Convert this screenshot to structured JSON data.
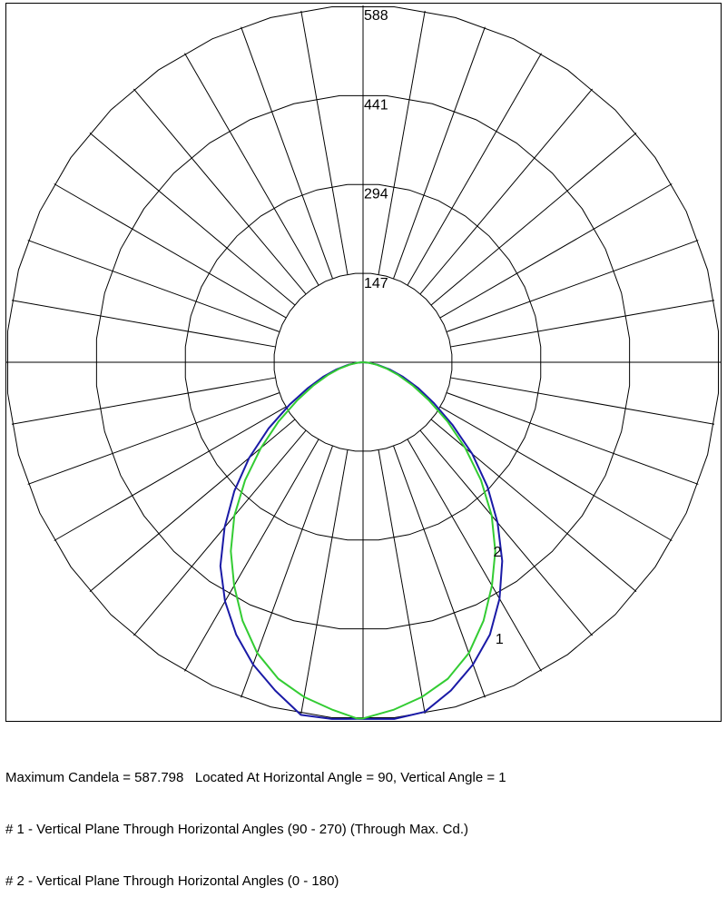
{
  "chart_data": {
    "type": "polar-line",
    "title": "",
    "unit": "cd",
    "r_max": 588,
    "ring_values": [
      147,
      294,
      441,
      588
    ],
    "ring_labels": [
      "147",
      "294",
      "441",
      "588"
    ],
    "angular_grid_step_deg": 10,
    "grid": true,
    "angle_convention": "vertical angle in degrees measured from nadir (0 = straight down); negative = left side, positive = right side",
    "series": [
      {
        "label": "1",
        "color": "#1a1aa6",
        "points": [
          {
            "angle": -1,
            "r": 587.8
          },
          {
            "angle": -5,
            "r": 590
          },
          {
            "angle": -10,
            "r": 590
          },
          {
            "angle": -15,
            "r": 560
          },
          {
            "angle": -20,
            "r": 530
          },
          {
            "angle": -25,
            "r": 495
          },
          {
            "angle": -30,
            "r": 455
          },
          {
            "angle": -35,
            "r": 410
          },
          {
            "angle": -40,
            "r": 355
          },
          {
            "angle": -45,
            "r": 300
          },
          {
            "angle": -50,
            "r": 245
          },
          {
            "angle": -55,
            "r": 190
          },
          {
            "angle": -60,
            "r": 140
          },
          {
            "angle": -65,
            "r": 100
          },
          {
            "angle": -70,
            "r": 70
          },
          {
            "angle": -75,
            "r": 45
          },
          {
            "angle": -80,
            "r": 25
          },
          {
            "angle": -85,
            "r": 10
          },
          {
            "angle": -90,
            "r": 0
          },
          {
            "angle": 0,
            "r": 587.8
          },
          {
            "angle": 5,
            "r": 590
          },
          {
            "angle": 10,
            "r": 585
          },
          {
            "angle": 15,
            "r": 560
          },
          {
            "angle": 20,
            "r": 530
          },
          {
            "angle": 25,
            "r": 495
          },
          {
            "angle": 30,
            "r": 450
          },
          {
            "angle": 35,
            "r": 400
          },
          {
            "angle": 40,
            "r": 345
          },
          {
            "angle": 45,
            "r": 290
          },
          {
            "angle": 50,
            "r": 235
          },
          {
            "angle": 55,
            "r": 180
          },
          {
            "angle": 60,
            "r": 135
          },
          {
            "angle": 65,
            "r": 100
          },
          {
            "angle": 70,
            "r": 70
          },
          {
            "angle": 75,
            "r": 45
          },
          {
            "angle": 80,
            "r": 25
          },
          {
            "angle": 85,
            "r": 10
          },
          {
            "angle": 90,
            "r": 0
          }
        ]
      },
      {
        "label": "2",
        "color": "#33cc33",
        "points": [
          {
            "angle": -1,
            "r": 587
          },
          {
            "angle": -5,
            "r": 575
          },
          {
            "angle": -10,
            "r": 560
          },
          {
            "angle": -15,
            "r": 540
          },
          {
            "angle": -20,
            "r": 510
          },
          {
            "angle": -25,
            "r": 470
          },
          {
            "angle": -30,
            "r": 425
          },
          {
            "angle": -35,
            "r": 380
          },
          {
            "angle": -40,
            "r": 330
          },
          {
            "angle": -45,
            "r": 275
          },
          {
            "angle": -50,
            "r": 220
          },
          {
            "angle": -55,
            "r": 170
          },
          {
            "angle": -60,
            "r": 125
          },
          {
            "angle": -65,
            "r": 90
          },
          {
            "angle": -70,
            "r": 62
          },
          {
            "angle": -75,
            "r": 40
          },
          {
            "angle": -80,
            "r": 22
          },
          {
            "angle": -85,
            "r": 9
          },
          {
            "angle": -90,
            "r": 0
          },
          {
            "angle": 0,
            "r": 587
          },
          {
            "angle": 5,
            "r": 575
          },
          {
            "angle": 10,
            "r": 560
          },
          {
            "angle": 15,
            "r": 540
          },
          {
            "angle": 20,
            "r": 510
          },
          {
            "angle": 25,
            "r": 470
          },
          {
            "angle": 30,
            "r": 425
          },
          {
            "angle": 35,
            "r": 380
          },
          {
            "angle": 40,
            "r": 330
          },
          {
            "angle": 45,
            "r": 275
          },
          {
            "angle": 50,
            "r": 220
          },
          {
            "angle": 55,
            "r": 170
          },
          {
            "angle": 60,
            "r": 125
          },
          {
            "angle": 65,
            "r": 90
          },
          {
            "angle": 70,
            "r": 62
          },
          {
            "angle": 75,
            "r": 40
          },
          {
            "angle": 80,
            "r": 22
          },
          {
            "angle": 85,
            "r": 9
          },
          {
            "angle": 90,
            "r": 0
          }
        ]
      }
    ]
  },
  "footer": {
    "line1": "Maximum Candela = 587.798   Located At Horizontal Angle = 90, Vertical Angle = 1",
    "line2": "# 1 - Vertical Plane Through Horizontal Angles (90 - 270) (Through Max. Cd.)",
    "line3": "# 2 - Vertical Plane Through Horizontal Angles (0 - 180)"
  }
}
